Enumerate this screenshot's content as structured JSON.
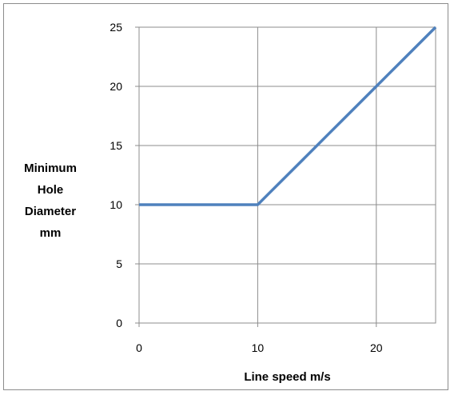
{
  "chart_data": {
    "type": "line",
    "title": "",
    "xlabel": "Line speed m/s",
    "ylabel_lines": [
      "Minimum",
      "Hole",
      "Diameter",
      "mm"
    ],
    "xlim": [
      0,
      25
    ],
    "ylim": [
      0,
      25
    ],
    "x_ticks": [
      0,
      10,
      20
    ],
    "y_ticks": [
      0,
      5,
      10,
      15,
      20,
      25
    ],
    "grid": true,
    "legend": "none",
    "series": [
      {
        "color": "#4f81bd",
        "points": [
          {
            "x": 0,
            "y": 10
          },
          {
            "x": 10,
            "y": 10
          },
          {
            "x": 11,
            "y": 11
          },
          {
            "x": 12,
            "y": 12
          },
          {
            "x": 13,
            "y": 13
          },
          {
            "x": 14,
            "y": 14
          },
          {
            "x": 15,
            "y": 15
          },
          {
            "x": 16,
            "y": 16
          },
          {
            "x": 17,
            "y": 17
          },
          {
            "x": 18,
            "y": 18
          },
          {
            "x": 19,
            "y": 19
          },
          {
            "x": 20,
            "y": 20
          },
          {
            "x": 21,
            "y": 21
          },
          {
            "x": 22,
            "y": 22
          },
          {
            "x": 23,
            "y": 23
          },
          {
            "x": 24,
            "y": 24
          },
          {
            "x": 25,
            "y": 25
          }
        ]
      }
    ],
    "colors": {
      "grid": "#8c8c8c",
      "plot_border": "#8c8c8c",
      "frame_border": "#8c8c8c"
    }
  }
}
